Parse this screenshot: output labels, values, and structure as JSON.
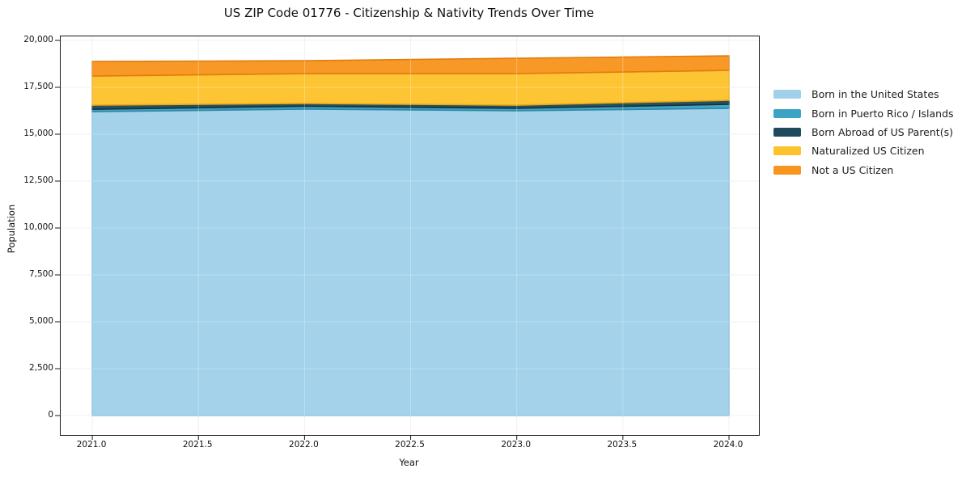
{
  "title": "US ZIP Code 01776 - Citizenship & Nativity Trends Over Time",
  "chart_data": {
    "type": "area",
    "stacked": true,
    "title": "US ZIP Code 01776 - Citizenship & Nativity Trends Over Time",
    "xlabel": "Year",
    "ylabel": "Population",
    "x": [
      2021,
      2022,
      2023,
      2024
    ],
    "series": [
      {
        "name": "Born in the United States",
        "color": "#a0d1e9",
        "edge_color": "#7fbcdc",
        "values": [
          16200,
          16340,
          16250,
          16380
        ]
      },
      {
        "name": "Born in Puerto Rico / Islands",
        "color": "#3ba3c4",
        "edge_color": "#2e87a4",
        "values": [
          130,
          150,
          130,
          215
        ]
      },
      {
        "name": "Born Abroad of US Parent(s)",
        "color": "#1f4a5e",
        "edge_color": "#143240",
        "values": [
          220,
          150,
          170,
          215
        ]
      },
      {
        "name": "Naturalized US Citizen",
        "color": "#fdc32c",
        "edge_color": "#e9a912",
        "values": [
          1550,
          1590,
          1680,
          1595
        ]
      },
      {
        "name": "Not a US Citizen",
        "color": "#f8951f",
        "edge_color": "#e07d0d",
        "values": [
          780,
          690,
          820,
          775
        ]
      }
    ],
    "x_ticks": [
      2021.0,
      2021.5,
      2022.0,
      2022.5,
      2023.0,
      2023.5,
      2024.0
    ],
    "x_tick_labels": [
      "2021.0",
      "2021.5",
      "2022.0",
      "2022.5",
      "2023.0",
      "2023.5",
      "2024.0"
    ],
    "y_ticks": [
      0,
      2500,
      5000,
      7500,
      10000,
      12500,
      15000,
      17500,
      20000
    ],
    "y_tick_labels": [
      "0",
      "2,500",
      "5,000",
      "7,500",
      "10,000",
      "12,500",
      "15,000",
      "17,500",
      "20,000"
    ],
    "xlim": [
      2020.851,
      2024.141
    ],
    "ylim": [
      -1034,
      20216
    ],
    "grid": true,
    "grid_color": "#ececec",
    "legend_position": "right",
    "legend_labels": [
      "Born in the United States",
      "Born in Puerto Rico / Islands",
      "Born Abroad of US Parent(s)",
      "Naturalized US Citizen",
      "Not a US Citizen"
    ]
  }
}
